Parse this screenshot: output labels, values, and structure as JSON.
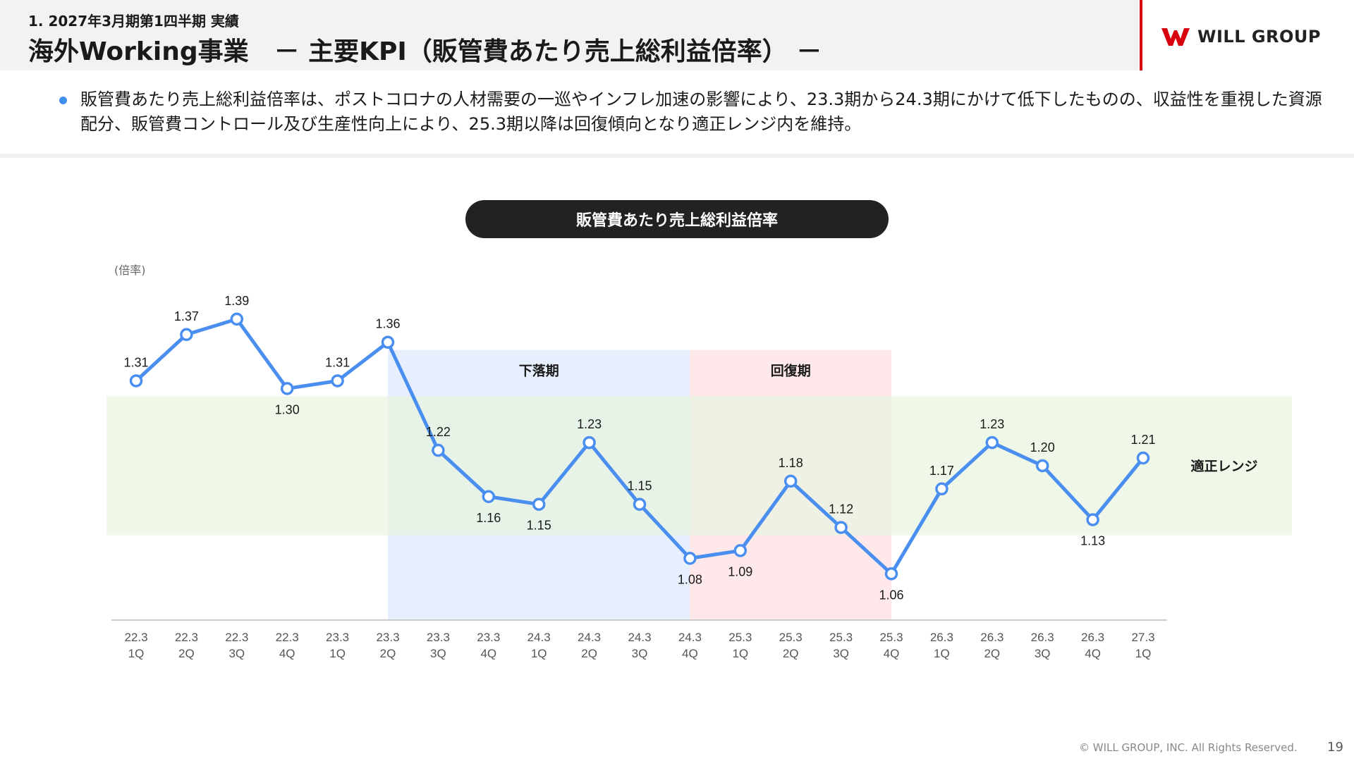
{
  "header": {
    "breadcrumb": "1. 2027年3月期第1四半期 実績",
    "title": "海外Working事業　－ 主要KPI（販管費あたり売上総利益倍率） －"
  },
  "logo": {
    "text": "WILL GROUP",
    "color": "#d7000f"
  },
  "summary": {
    "bullet": "販管費あたり売上総利益倍率は、ポストコロナの人材需要の一巡やインフレ加速の影響により、23.3期から24.3期にかけて低下したものの、収益性を重視した資源配分、販管費コントロール及び生産性向上により、25.3期以降は回復傾向となり適正レンジ内を維持。"
  },
  "chart_title": "販管費あたり売上総利益倍率",
  "chart_data": {
    "type": "line",
    "unit_label": "(倍率)",
    "categories": [
      [
        "22.3",
        "1Q"
      ],
      [
        "22.3",
        "2Q"
      ],
      [
        "22.3",
        "3Q"
      ],
      [
        "22.3",
        "4Q"
      ],
      [
        "23.3",
        "1Q"
      ],
      [
        "23.3",
        "2Q"
      ],
      [
        "23.3",
        "3Q"
      ],
      [
        "23.3",
        "4Q"
      ],
      [
        "24.3",
        "1Q"
      ],
      [
        "24.3",
        "2Q"
      ],
      [
        "24.3",
        "3Q"
      ],
      [
        "24.3",
        "4Q"
      ],
      [
        "25.3",
        "1Q"
      ],
      [
        "25.3",
        "2Q"
      ],
      [
        "25.3",
        "3Q"
      ],
      [
        "25.3",
        "4Q"
      ],
      [
        "26.3",
        "1Q"
      ],
      [
        "26.3",
        "2Q"
      ],
      [
        "26.3",
        "3Q"
      ],
      [
        "26.3",
        "4Q"
      ],
      [
        "27.3",
        "1Q"
      ]
    ],
    "values": [
      1.31,
      1.37,
      1.39,
      1.3,
      1.31,
      1.36,
      1.22,
      1.16,
      1.15,
      1.23,
      1.15,
      1.08,
      1.09,
      1.18,
      1.12,
      1.06,
      1.17,
      1.23,
      1.2,
      1.13,
      1.21
    ],
    "value_labels": [
      "1.31",
      "1.37",
      "1.39",
      "1.30",
      "1.31",
      "1.36",
      "1.22",
      "1.16",
      "1.15",
      "1.23",
      "1.15",
      "1.08",
      "1.09",
      "1.18",
      "1.12",
      "1.06",
      "1.17",
      "1.23",
      "1.20",
      "1.13",
      "1.21"
    ],
    "label_positions": [
      "above",
      "above",
      "above",
      "below",
      "above",
      "above",
      "above",
      "below",
      "below",
      "above",
      "above",
      "below",
      "below",
      "above",
      "above",
      "below",
      "above",
      "above",
      "above",
      "below",
      "above"
    ],
    "ylim": [
      1.0,
      1.42
    ],
    "grid": false,
    "band": {
      "label": "適正レンジ",
      "from": 1.11,
      "to": 1.29,
      "color": "#e8f4e0"
    },
    "periods": [
      {
        "label": "下落期",
        "from_index": 5,
        "to_index": 11,
        "top_value": 1.35,
        "color": "#e7efff"
      },
      {
        "label": "回復期",
        "from_index": 11,
        "to_index": 15,
        "top_value": 1.35,
        "color": "#ffe8ea"
      }
    ],
    "line_color": "#4a8ff0"
  },
  "footer": {
    "copyright": "© WILL GROUP, INC. All Rights Reserved.",
    "page": "19"
  }
}
